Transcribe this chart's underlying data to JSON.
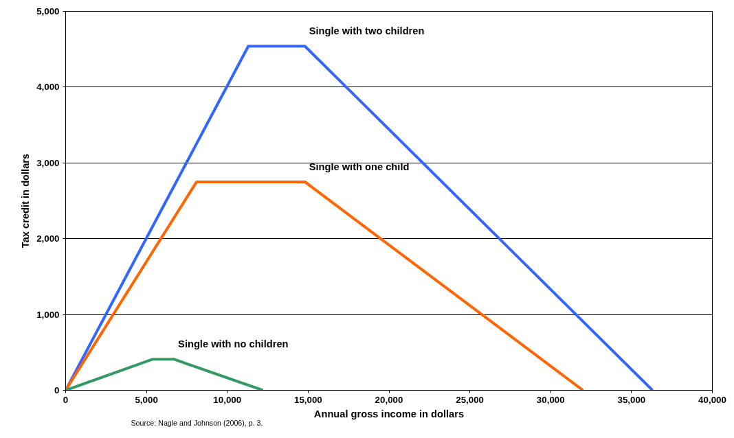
{
  "chart_data": {
    "type": "line",
    "xlabel": "Annual gross income in dollars",
    "ylabel": "Tax credit in dollars",
    "xlim": [
      0,
      40000
    ],
    "xticks": [
      {
        "value": 0,
        "label": "0"
      },
      {
        "value": 5000,
        "label": "5,000"
      },
      {
        "value": 10000,
        "label": "10,000"
      },
      {
        "value": 15000,
        "label": "15,000"
      },
      {
        "value": 20000,
        "label": "20,000"
      },
      {
        "value": 25000,
        "label": "25,000"
      },
      {
        "value": 30000,
        "label": "30,000"
      },
      {
        "value": 35000,
        "label": "35,000"
      },
      {
        "value": 40000,
        "label": "40,000"
      }
    ],
    "ylim": [
      0,
      5000
    ],
    "yticks": [
      {
        "value": 0,
        "label": "0"
      },
      {
        "value": 1000,
        "label": "1,000"
      },
      {
        "value": 2000,
        "label": "2,000"
      },
      {
        "value": 3000,
        "label": "3,000"
      },
      {
        "value": 4000,
        "label": "4,000"
      },
      {
        "value": 5000,
        "label": "5,000"
      }
    ],
    "grid": "y",
    "marker": "none",
    "line_style": "solid",
    "series": [
      {
        "name": "Single with two children",
        "color": "#3366ff",
        "x": [
          0,
          11300,
          14800,
          36300
        ],
        "values": [
          0,
          4540,
          4540,
          0
        ]
      },
      {
        "name": "Single with one child",
        "color": "#ff6600",
        "x": [
          0,
          8100,
          14800,
          32000
        ],
        "values": [
          0,
          2750,
          2750,
          0
        ]
      },
      {
        "name": "Single with no children",
        "color": "#339966",
        "x": [
          0,
          5400,
          6700,
          12200
        ],
        "values": [
          0,
          410,
          410,
          0
        ]
      }
    ],
    "annotations": [
      "Source: Nagle and Johnson (2006), p. 3."
    ]
  }
}
